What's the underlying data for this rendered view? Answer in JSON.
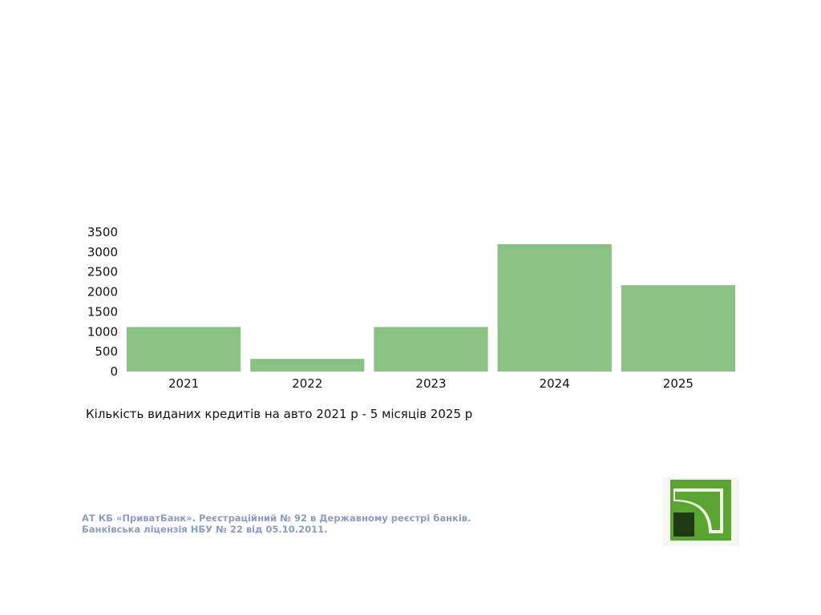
{
  "chart_data": {
    "type": "bar",
    "categories": [
      "2021",
      "2022",
      "2023",
      "2024",
      "2025"
    ],
    "values": [
      1120,
      320,
      1120,
      3200,
      2170
    ],
    "yticks": [
      "0",
      "500",
      "1000",
      "1500",
      "2000",
      "2500",
      "3000",
      "3500"
    ],
    "ylim": [
      0,
      3500
    ],
    "grid": false,
    "bar_color": "#88c383"
  },
  "caption": "Кількість виданих кредитів на авто 2021 р - 5 місяців 2025 р",
  "footer": {
    "line1": "АТ КБ «ПриватБанк». Реєстраційний № 92 в Державному реєстрі банків.",
    "line2": "Банківська ліцензія НБУ № 22 від 05.10.2011."
  },
  "logo": {
    "icon": "privatbank-logo-icon",
    "colors": {
      "light_green": "#5aa52f",
      "dark_green": "#1d3a14",
      "mid_green": "#3b7a22"
    }
  }
}
